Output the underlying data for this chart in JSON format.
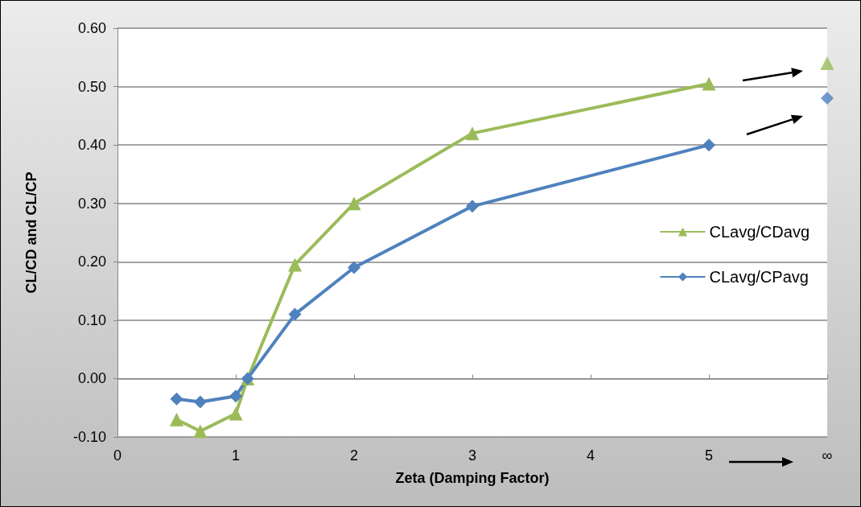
{
  "chart_data": {
    "type": "line",
    "xlabel": "Zeta (Damping Factor)",
    "ylabel": "CL/CD and CL/CP",
    "xlim": [
      0,
      6
    ],
    "xticks": [
      0,
      1,
      2,
      3,
      4,
      5,
      {
        "value": 6,
        "label": "∞"
      }
    ],
    "ylim": [
      -0.1,
      0.6
    ],
    "yticks": [
      {
        "value": -0.1,
        "label": "-0.10"
      },
      {
        "value": 0,
        "label": "0.00"
      },
      {
        "value": 0.1,
        "label": "0.10"
      },
      {
        "value": 0.2,
        "label": "0.20"
      },
      {
        "value": 0.3,
        "label": "0.30"
      },
      {
        "value": 0.4,
        "label": "0.40"
      },
      {
        "value": 0.5,
        "label": "0.50"
      },
      {
        "value": 0.6,
        "label": "0.60"
      }
    ],
    "grid": "y",
    "legend": "right",
    "series": [
      {
        "name": "CLavg/CDavg",
        "color": "#9bbb59",
        "marker": "triangle",
        "x": [
          0.5,
          0.7,
          1,
          1.1,
          1.5,
          2,
          3,
          5
        ],
        "values": [
          -0.07,
          -0.09,
          -0.06,
          0.0,
          0.195,
          0.3,
          0.42,
          0.505
        ]
      },
      {
        "name": "CLavg/CPavg",
        "color": "#4f81bd",
        "marker": "diamond",
        "x": [
          0.5,
          0.7,
          1,
          1.1,
          1.5,
          2,
          3,
          5
        ],
        "values": [
          -0.035,
          -0.04,
          -0.03,
          0.0,
          0.11,
          0.19,
          0.295,
          0.4
        ]
      },
      {
        "type": "scatter",
        "color": "#9bbb59",
        "marker": "triangle",
        "x": [
          6
        ],
        "values": [
          0.54
        ]
      },
      {
        "type": "scatter",
        "color": "#4f81bd",
        "marker": "diamond",
        "x": [
          6
        ],
        "values": [
          0.48
        ]
      }
    ]
  }
}
